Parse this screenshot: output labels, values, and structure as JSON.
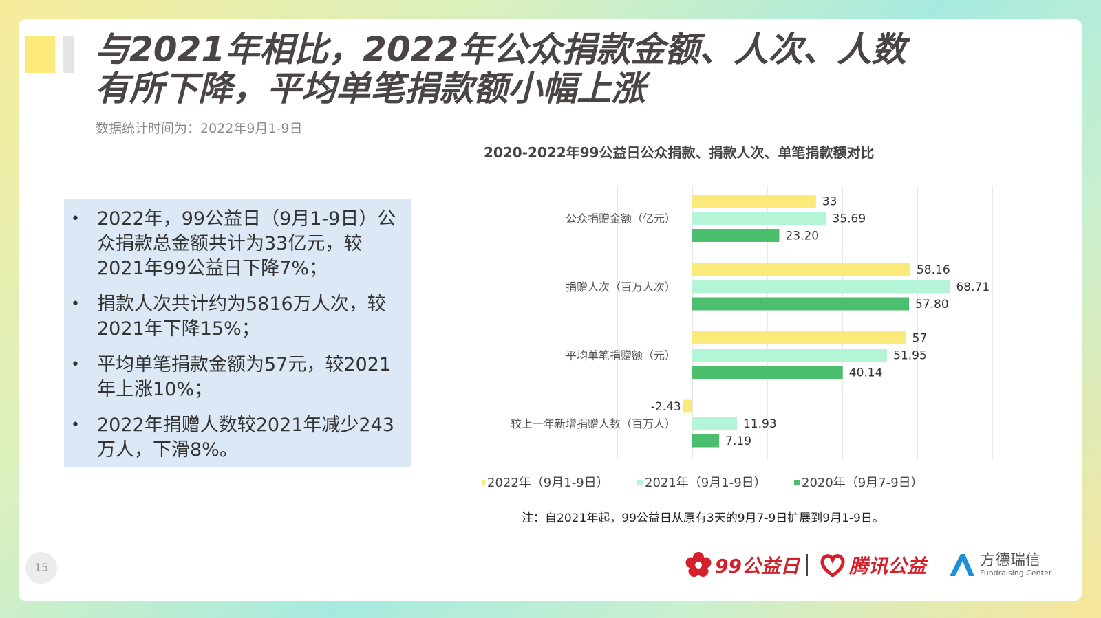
{
  "slide": {
    "title_line1": "与2021年相比，2022年公众捐款金额、人次、人数",
    "title_line2": "有所下降，平均单笔捐款额小幅上涨",
    "subtitle": "数据统计时间为：2022年9月1-9日",
    "page_number": "15",
    "bullet_symbol": "•",
    "bullets": [
      "2022年，99公益日（9月1-9日）公众捐款总金额共计为33亿元，较2021年99公益日下降7%；",
      "捐款人次共计约为5816万人次，较2021年下降15%；",
      "平均单笔捐款金额为57元，较2021年上涨10%；",
      "2022年捐赠人数较2021年减少243万人，下滑8%。"
    ],
    "note": "注：自2021年起，99公益日从原有3天的9月7-9日扩展到9月1-9日。",
    "logos": {
      "logo1_text": "99公益日",
      "logo2_text": "腾讯公益",
      "logo3_cn": "方德瑞信",
      "logo3_en": "Fundraising Center"
    }
  },
  "colors": {
    "series_2022": "#fbe97a",
    "series_2021": "#b4f5d8",
    "series_2020": "#4cbf6e",
    "accent_red": "#d4202a",
    "text_dark": "#4a4444"
  },
  "chart_data": {
    "type": "bar",
    "orientation": "horizontal",
    "title": "2020-2022年99公益日公众捐款、捐款人次、单笔捐款额对比",
    "categories": [
      "公众捐赠金额（亿元）",
      "捐赠人次（百万人次）",
      "平均单笔捐赠额（元）",
      "较上一年新增捐赠人数（百万人）"
    ],
    "series": [
      {
        "name": "2022年（9月1-9日）",
        "values": [
          33,
          58.16,
          57,
          -2.43
        ],
        "labels": [
          "33",
          "58.16",
          "57",
          "-2.43"
        ]
      },
      {
        "name": "2021年（9月1-9日）",
        "values": [
          35.69,
          68.71,
          51.95,
          11.93
        ],
        "labels": [
          "35.69",
          "68.71",
          "51.95",
          "11.93"
        ]
      },
      {
        "name": "2020年（9月7-9日）",
        "values": [
          23.2,
          57.8,
          40.14,
          7.19
        ],
        "labels": [
          "23.20",
          "57.80",
          "40.14",
          "7.19"
        ]
      }
    ],
    "xlim": [
      -20,
      80
    ],
    "grid": true,
    "legend_position": "bottom"
  }
}
